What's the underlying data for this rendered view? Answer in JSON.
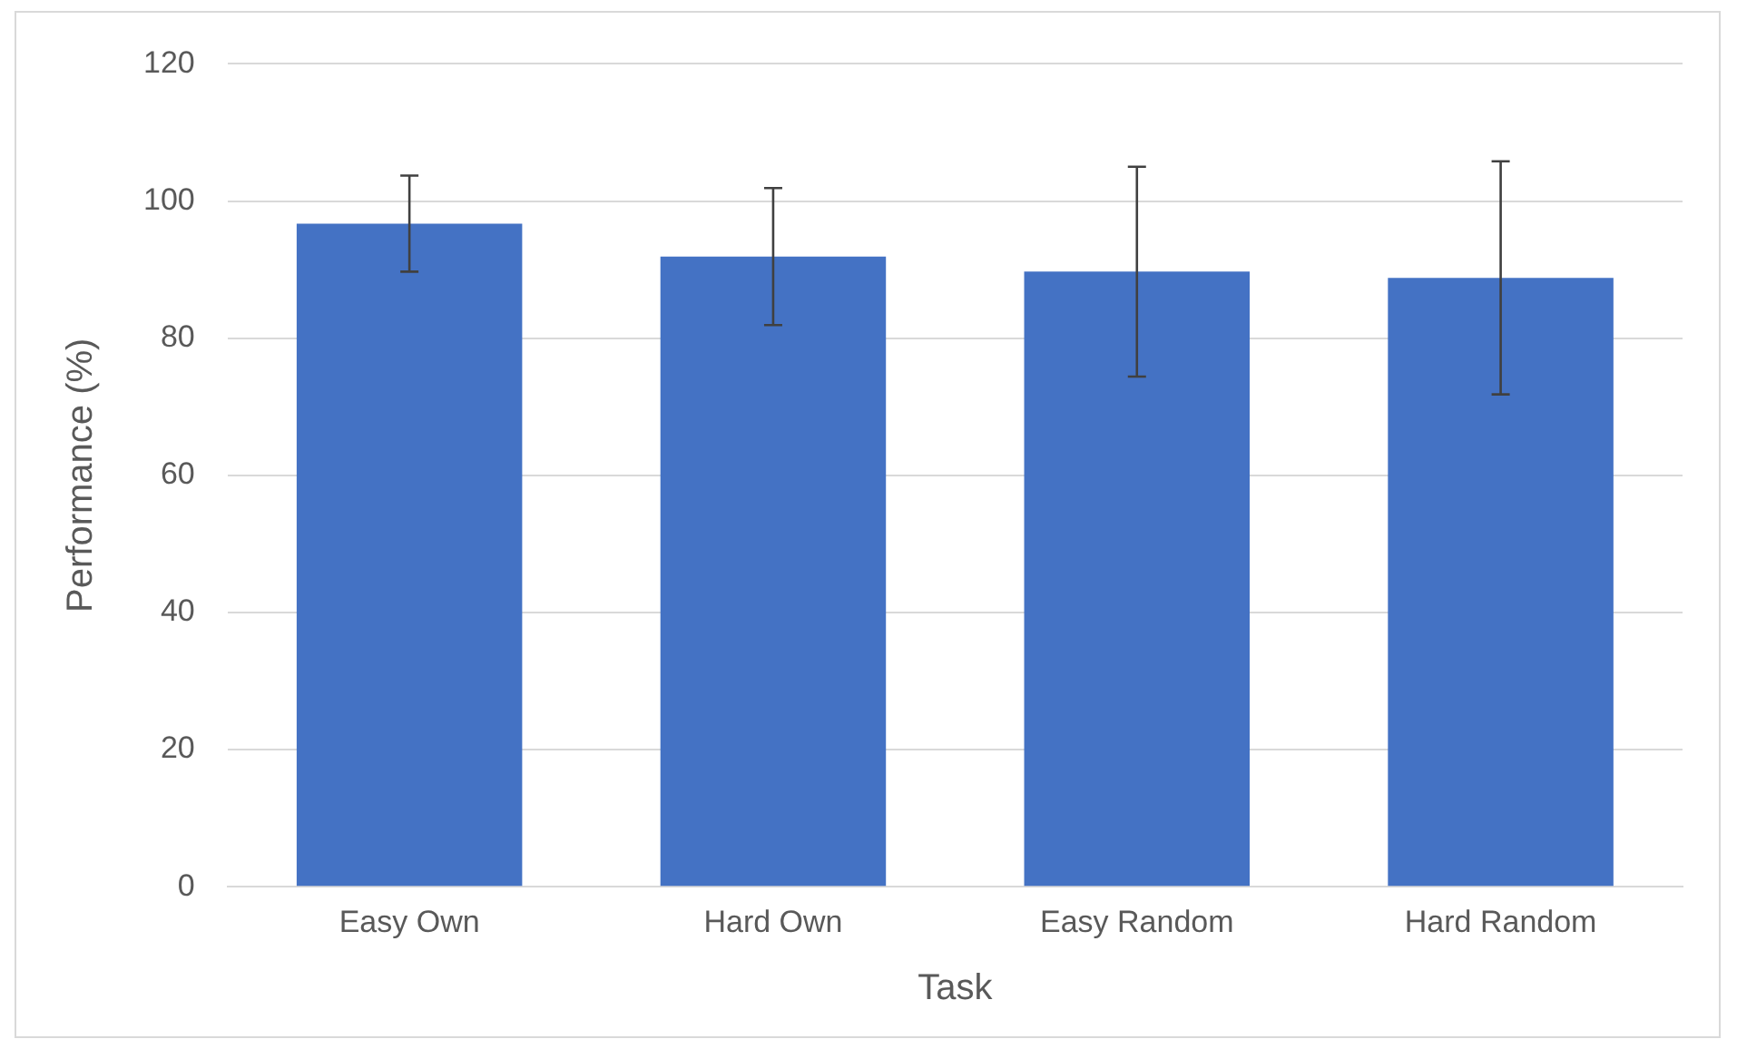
{
  "chart_data": {
    "type": "bar",
    "xlabel": "Task",
    "ylabel": "Performance (%)",
    "categories": [
      "Easy Own",
      "Hard Own",
      "Easy Random",
      "Hard Random"
    ],
    "values": [
      96.7,
      91.9,
      89.7,
      88.8
    ],
    "errors": [
      7,
      10,
      15.3,
      17
    ],
    "color": "#4472c4",
    "ylim": [
      0,
      120
    ],
    "yticks": [
      0,
      20,
      40,
      60,
      80,
      100,
      120
    ],
    "grid": "y"
  }
}
